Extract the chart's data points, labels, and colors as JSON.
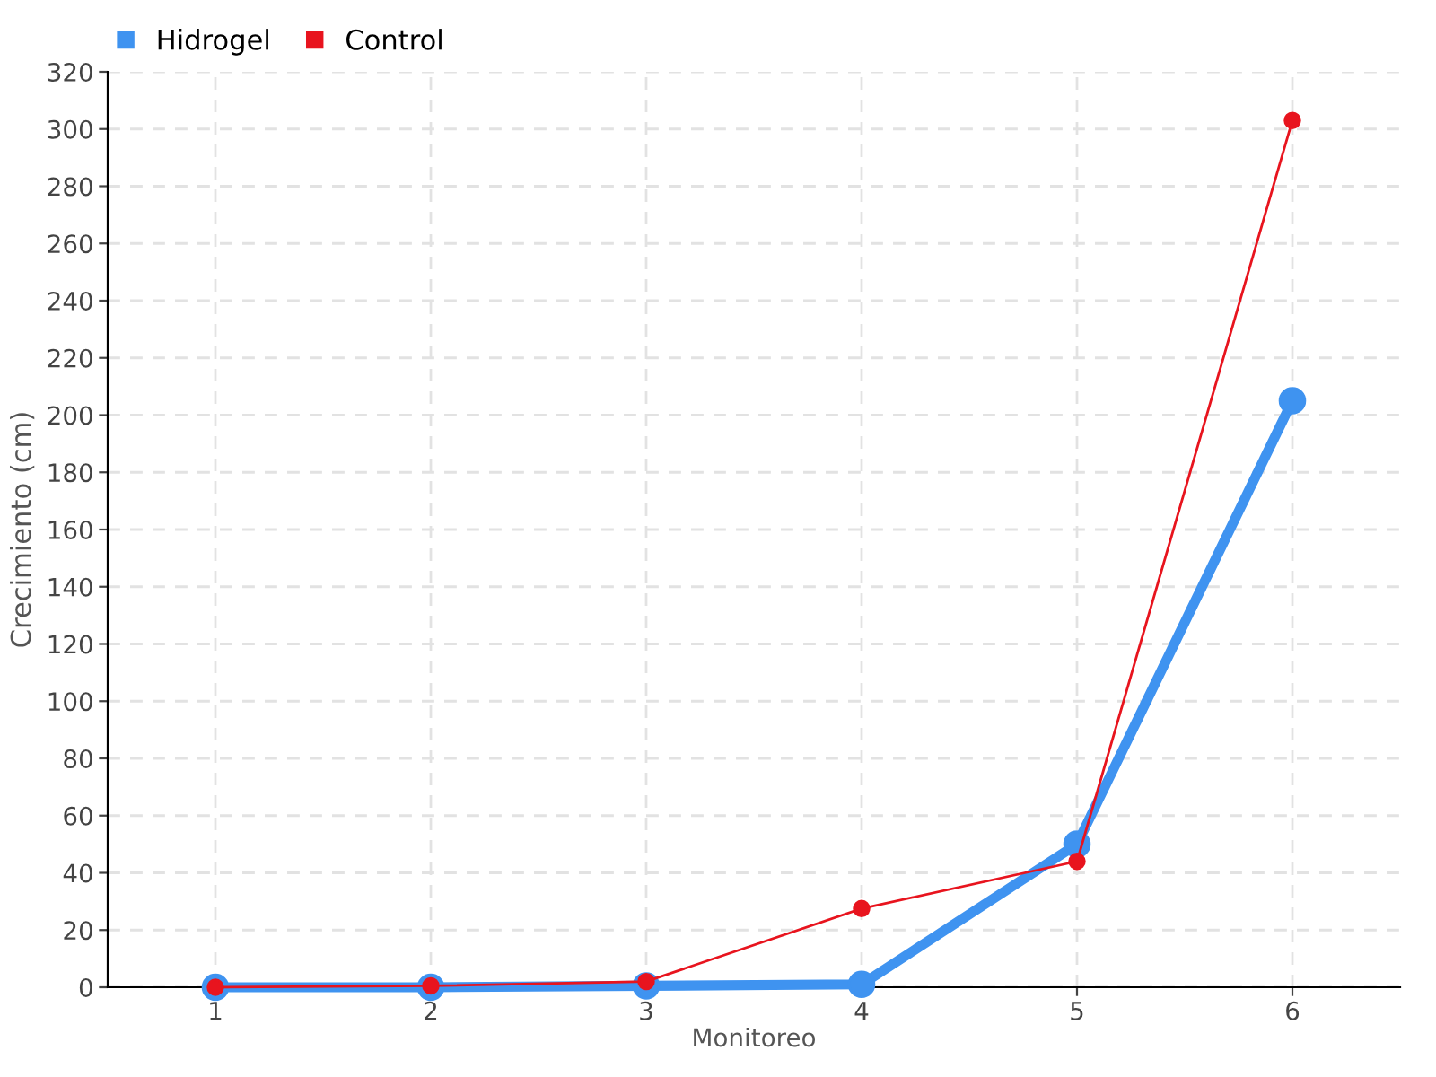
{
  "chart_data": {
    "type": "line",
    "xlabel": "Monitoreo",
    "ylabel": "Crecimiento (cm)",
    "categories": [
      "1",
      "2",
      "3",
      "4",
      "5",
      "6"
    ],
    "series": [
      {
        "name": "Hidrogel",
        "color": "#3f93f0",
        "values": [
          0,
          0,
          0.5,
          1,
          50,
          205
        ]
      },
      {
        "name": "Control",
        "color": "#e8141e",
        "values": [
          0,
          0.5,
          2,
          27.5,
          44,
          303
        ]
      }
    ],
    "ylim": [
      0,
      320
    ],
    "yticks": [
      0,
      20,
      40,
      60,
      80,
      100,
      120,
      140,
      160,
      180,
      200,
      220,
      240,
      260,
      280,
      300,
      320
    ],
    "grid": true,
    "legend": "top left",
    "marker": "circle",
    "line_style": "solid"
  }
}
